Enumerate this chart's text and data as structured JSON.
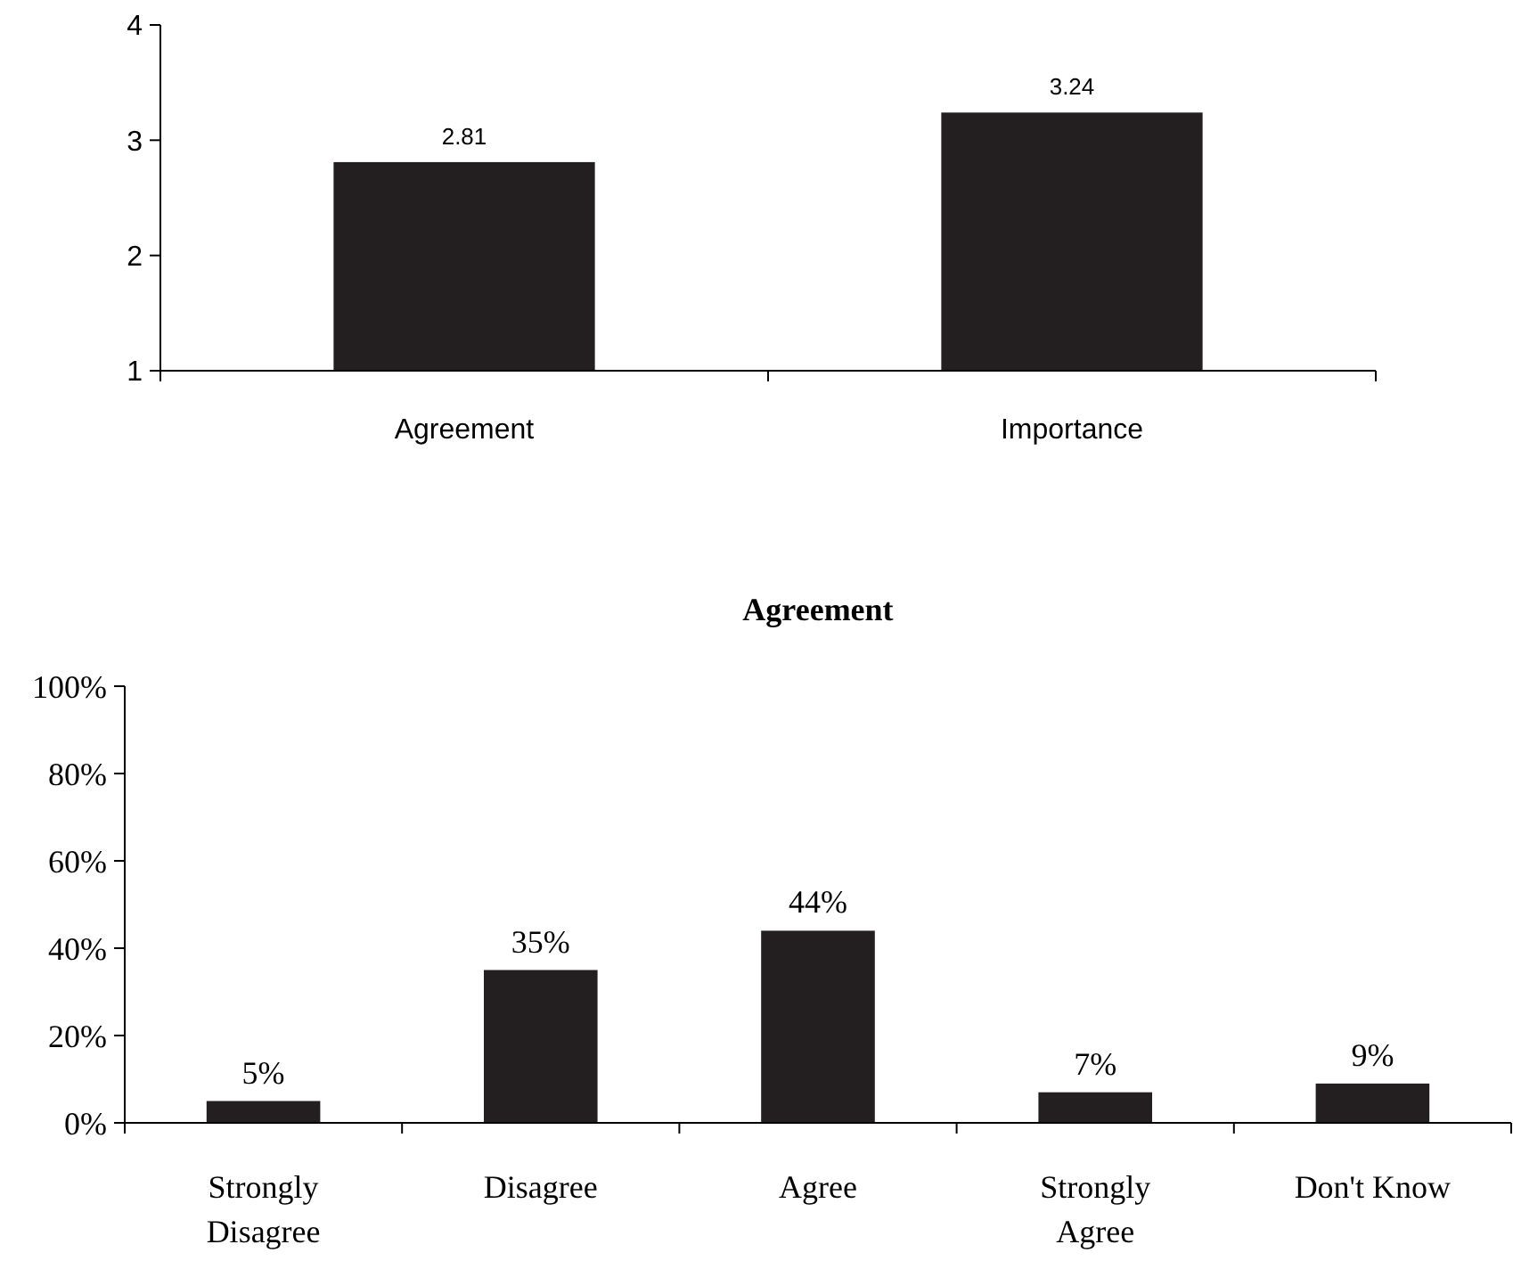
{
  "chart_data": [
    {
      "type": "bar",
      "categories": [
        "Agreement",
        "Importance"
      ],
      "values": [
        2.81,
        3.24
      ],
      "color": "#231f20",
      "ylim": [
        1,
        4
      ],
      "yticks": [
        1,
        2,
        3,
        4
      ],
      "data_labels": true
    },
    {
      "type": "bar",
      "title": "Agreement",
      "categories": [
        "Strongly Disagree",
        "Disagree",
        "Agree",
        "Strongly Agree",
        "Don't Know"
      ],
      "values": [
        5,
        35,
        44,
        7,
        9
      ],
      "value_labels": [
        "5%",
        "35%",
        "44%",
        "7%",
        "9%"
      ],
      "color": "#231f20",
      "ylim": [
        0,
        100
      ],
      "yticks": [
        {
          "value": 0,
          "label": "0%"
        },
        {
          "value": 20,
          "label": "20%"
        },
        {
          "value": 40,
          "label": "40%"
        },
        {
          "value": 60,
          "label": "60%"
        },
        {
          "value": 80,
          "label": "80%"
        },
        {
          "value": 100,
          "label": "100%"
        }
      ]
    }
  ]
}
